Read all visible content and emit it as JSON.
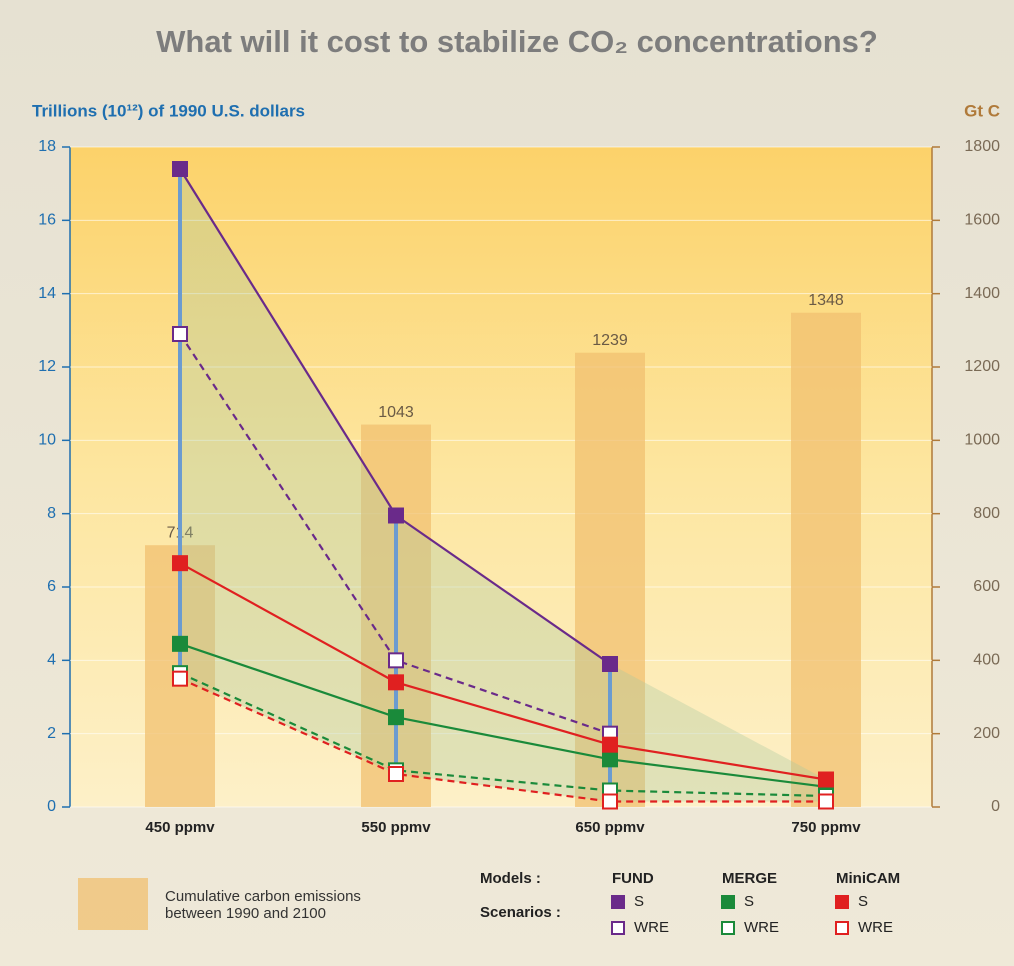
{
  "chart_data": {
    "type": "line",
    "title": "What will it cost to stabilize CO₂ concentrations?",
    "y_label": "Trillions (10¹²) of 1990 U.S. dollars",
    "y2_label": "Gt C",
    "categories": [
      "450 ppmv",
      "550 ppmv",
      "650 ppmv",
      "750 ppmv"
    ],
    "ylim": [
      0,
      18
    ],
    "yticks": [
      0,
      2,
      4,
      6,
      8,
      10,
      12,
      14,
      16,
      18
    ],
    "y2lim": [
      0,
      1800
    ],
    "y2ticks": [
      0,
      200,
      400,
      600,
      800,
      1000,
      1200,
      1400,
      1600,
      1800
    ],
    "bars": {
      "axis": "y2",
      "color": "#f0c070",
      "values": [
        714,
        1043,
        1239,
        1348
      ],
      "label": "Cumulative carbon emissions between 1990 and 2100"
    },
    "legend": {
      "models_label": "Models :",
      "scenarios_label": "Scenarios :"
    },
    "range_color": "#6b9bd0",
    "series": [
      {
        "model": "FUND",
        "scenario": "S",
        "color": "#6a2a8a",
        "dashed": false,
        "values": [
          17.4,
          7.95,
          3.9,
          null
        ]
      },
      {
        "model": "FUND",
        "scenario": "WRE",
        "color": "#6a2a8a",
        "dashed": true,
        "values": [
          12.9,
          4.0,
          2.0,
          null
        ]
      },
      {
        "model": "MERGE",
        "scenario": "S",
        "color": "#1a8a3a",
        "dashed": false,
        "values": [
          4.45,
          2.45,
          1.3,
          0.55
        ]
      },
      {
        "model": "MERGE",
        "scenario": "WRE",
        "color": "#1a8a3a",
        "dashed": true,
        "values": [
          3.65,
          1.0,
          0.45,
          0.3
        ]
      },
      {
        "model": "MiniCAM",
        "scenario": "S",
        "color": "#e02020",
        "dashed": false,
        "values": [
          6.65,
          3.4,
          1.7,
          0.75
        ]
      },
      {
        "model": "MiniCAM",
        "scenario": "WRE",
        "color": "#e02020",
        "dashed": true,
        "values": [
          3.5,
          0.9,
          0.15,
          0.15
        ]
      }
    ]
  }
}
